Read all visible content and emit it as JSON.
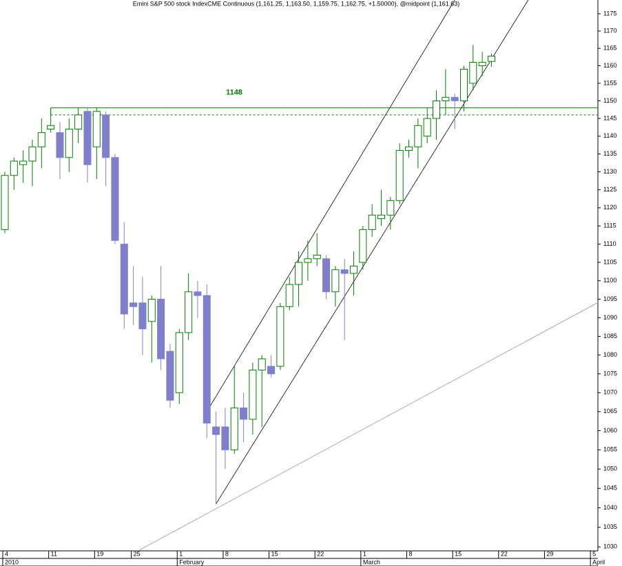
{
  "chart_data": {
    "type": "candlestick",
    "title": "Emini S&P 500 stock IndexCME Continuous (1,161.25, 1,163.50, 1,159.75, 1,162.75, +1.50000), @midpoint (1,161.63)",
    "categories": [
      "4",
      null,
      null,
      null,
      null,
      "11",
      null,
      null,
      null,
      null,
      "19",
      null,
      null,
      null,
      "25",
      null,
      null,
      null,
      null,
      "1",
      null,
      null,
      null,
      null,
      "8",
      null,
      null,
      null,
      null,
      "15",
      null,
      null,
      null,
      null,
      "22",
      null,
      null,
      null,
      null,
      "1",
      null,
      null,
      null,
      null,
      "8",
      null,
      null,
      null,
      null,
      "15",
      null,
      null,
      null,
      null,
      "22",
      null,
      null,
      null,
      null,
      "29",
      null,
      null,
      null,
      null,
      "5"
    ],
    "months": [
      "2010",
      null,
      null,
      null,
      null,
      null,
      null,
      null,
      null,
      null,
      null,
      null,
      null,
      null,
      null,
      null,
      null,
      null,
      null,
      "February",
      null,
      null,
      null,
      null,
      null,
      null,
      null,
      null,
      null,
      null,
      null,
      null,
      null,
      null,
      null,
      null,
      null,
      null,
      null,
      "March",
      null,
      null,
      null,
      null,
      null,
      null,
      null,
      null,
      null,
      null,
      null,
      null,
      null,
      null,
      null,
      null,
      null,
      null,
      null,
      null,
      null,
      null,
      null,
      null,
      "April"
    ],
    "open": [
      1114,
      1129,
      1132,
      1133,
      1137,
      1142,
      1141,
      1134,
      1142,
      1147,
      1137,
      1146,
      1134,
      1110,
      1094,
      1094,
      1089,
      1095,
      1081,
      1070,
      1086,
      1097,
      1096,
      1061,
      1061,
      1055,
      1066,
      1063,
      1076,
      1077,
      1077,
      1093,
      1099,
      1105,
      1106,
      1106,
      1097,
      1103,
      1102,
      1105,
      1114,
      1117,
      1118,
      1122,
      1136,
      1137,
      1140,
      1145,
      1150,
      1151,
      1150,
      1155,
      1160,
      1161.25,
      null,
      null,
      null,
      null,
      null,
      null,
      null,
      null,
      null,
      null,
      null
    ],
    "high": [
      1130,
      1134,
      1136,
      1139,
      1145,
      1148,
      1144,
      1145,
      1148,
      1148,
      1148,
      1147,
      1135,
      1116,
      1104,
      1101,
      1096,
      1104,
      1083,
      1087,
      1102,
      1100,
      1099,
      1065,
      1066,
      1077,
      1070,
      1078,
      1080,
      1080,
      1094,
      1101,
      1108,
      1111,
      1113,
      1107,
      1104,
      1106,
      1108,
      1115,
      1121,
      1125,
      1123,
      1138,
      1139,
      1145,
      1148,
      1153,
      1159,
      1152,
      1160,
      1166,
      1164,
      1163.5,
      null,
      null,
      null,
      null,
      null,
      null,
      null,
      null,
      null,
      null,
      null
    ],
    "low": [
      1113,
      1125,
      1127,
      1126,
      1131,
      1141,
      1128,
      1130,
      1138,
      1127,
      1128,
      1126,
      1110,
      1087,
      1088,
      1080,
      1078,
      1076,
      1066,
      1067,
      1084,
      1090,
      1058,
      1041,
      1050,
      1054,
      1057,
      1059,
      1061,
      1074,
      1076,
      1092,
      1093,
      1100,
      1104,
      1095,
      1093,
      1084,
      1096,
      1103,
      1112,
      1115,
      1114,
      1121,
      1134,
      1131,
      1138,
      1139,
      1146,
      1142,
      1147,
      1153,
      1157,
      1159.75,
      null,
      null,
      null,
      null,
      null,
      null,
      null,
      null,
      null,
      null,
      null
    ],
    "close": [
      1129,
      1133,
      1133,
      1137,
      1141,
      1143,
      1134,
      1142,
      1146,
      1132,
      1147,
      1134,
      1111,
      1091,
      1093,
      1087,
      1095,
      1079,
      1068,
      1086,
      1097,
      1096,
      1062,
      1059,
      1055,
      1066,
      1063,
      1076,
      1079,
      1075,
      1093,
      1099,
      1105,
      1106,
      1107,
      1097,
      1103,
      1102,
      1104,
      1114,
      1118,
      1118,
      1122,
      1136,
      1137,
      1143,
      1145,
      1150,
      1151,
      1150,
      1159,
      1161,
      1161,
      1162.75,
      null,
      null,
      null,
      null,
      null,
      null,
      null,
      null,
      null,
      null,
      null
    ],
    "up_color": "#008000",
    "down_color": "#7f7fcc",
    "log": true,
    "ylim": [
      1029,
      1179
    ],
    "yticks": [
      1030,
      1035,
      1040,
      1045,
      1050,
      1055,
      1060,
      1065,
      1070,
      1075,
      1080,
      1085,
      1090,
      1095,
      1100,
      1105,
      1110,
      1115,
      1120,
      1125,
      1130,
      1135,
      1140,
      1145,
      1150,
      1155,
      1160,
      1165,
      1170,
      1175
    ],
    "levels": [
      {
        "value": 1148,
        "from": 5,
        "color": "#008000",
        "dashed": false
      },
      {
        "value": 1146,
        "from": 5,
        "color": "#008000",
        "dashed": true
      }
    ],
    "level_label": "1148",
    "trendlines": [
      {
        "x": [
          22,
          49
        ],
        "y": [
          1065,
          1179
        ],
        "color": "#000000"
      },
      {
        "x": [
          23,
          57
        ],
        "y": [
          1041,
          1179
        ],
        "color": "#000000"
      },
      {
        "x": [
          14.5,
          67.2
        ],
        "y": [
          1029,
          1097.6
        ],
        "color": "#999999"
      }
    ]
  }
}
